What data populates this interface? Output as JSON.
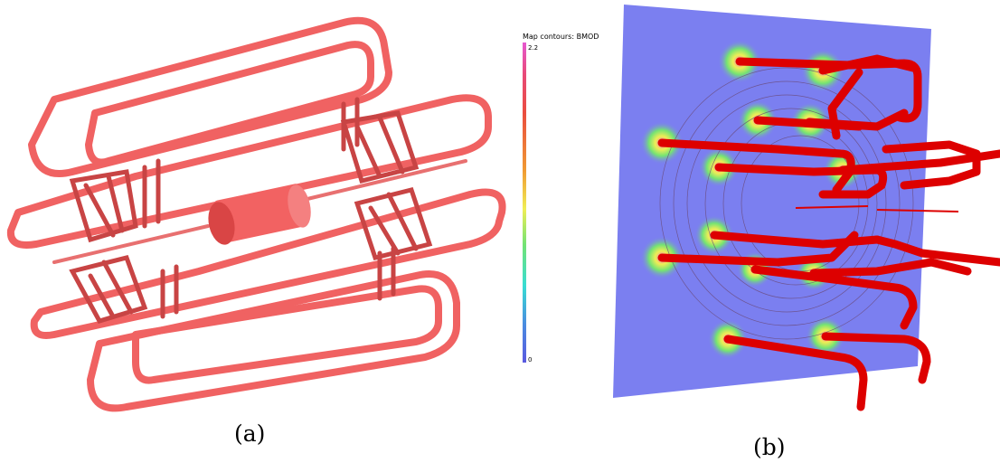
{
  "captions": {
    "a": "(a)",
    "b": "(b)"
  },
  "legend": {
    "title": "Map contours: BMOD",
    "max": "2.2",
    "min": "0"
  },
  "colors": {
    "coil_a": "#f06060",
    "coil_a_dark": "#b83a3a",
    "coil_b": "#dd0000",
    "plane_bg": "#7b7ff0",
    "field_hot": "#e85ad3"
  }
}
